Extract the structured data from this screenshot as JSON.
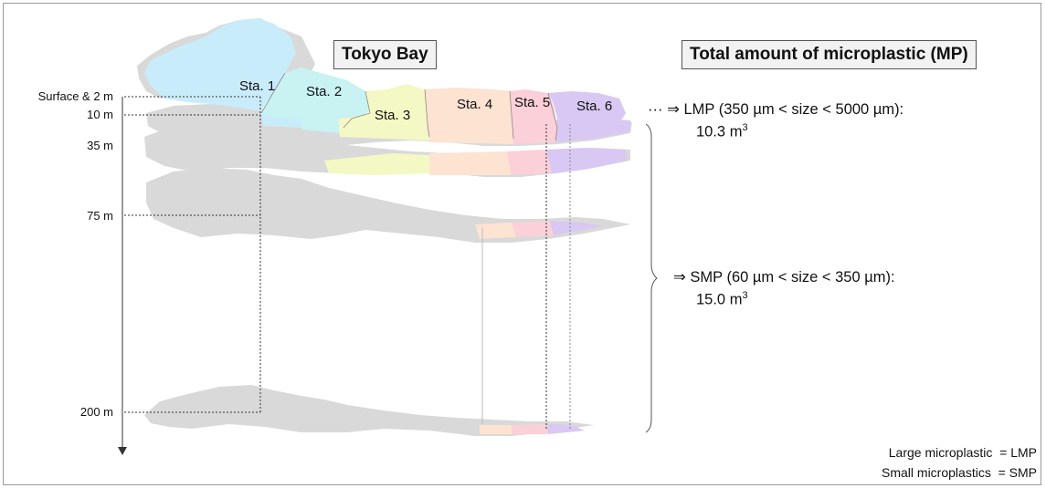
{
  "title": "Tokyo Bay",
  "panel_title": "Total amount of microplastic (MP)",
  "depths": [
    {
      "label": "Surface & 2 m"
    },
    {
      "label": "10 m"
    },
    {
      "label": "35 m"
    },
    {
      "label": "75 m"
    },
    {
      "label": "200 m"
    }
  ],
  "stations": [
    {
      "label": "Sta. 1",
      "color": "#c9ecfb"
    },
    {
      "label": "Sta. 2",
      "color": "#c9f2f3"
    },
    {
      "label": "Sta. 3",
      "color": "#f4f8c4"
    },
    {
      "label": "Sta. 4",
      "color": "#fde3d2"
    },
    {
      "label": "Sta. 5",
      "color": "#fbd0d8"
    },
    {
      "label": "Sta. 6",
      "color": "#d8c8f3"
    }
  ],
  "lmp": {
    "arrow": "⇒",
    "dots": "···",
    "line": "LMP (350 µm < size < 5000 µm):",
    "value": "10.3 m",
    "unit_exp": "3"
  },
  "smp": {
    "arrow": "⇒",
    "line": "SMP (60 µm < size < 350 µm):",
    "value": "15.0 m",
    "unit_exp": "3"
  },
  "legend": [
    {
      "text": "Large microplastic  = LMP"
    },
    {
      "text": "Small microplastics  = SMP"
    }
  ],
  "colors": {
    "map_gray": "#d9d9d9",
    "border": "#9a9a9a",
    "title_box": "#f2f2f2"
  }
}
